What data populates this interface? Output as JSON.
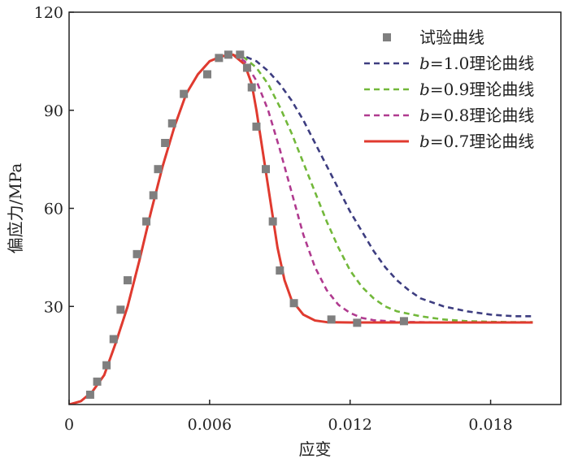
{
  "chart_data": {
    "type": "line",
    "xlabel": "应变",
    "ylabel": "偏应力/MPa",
    "xlim": [
      0,
      0.021
    ],
    "ylim": [
      0,
      120
    ],
    "x_ticks": [
      0,
      0.006,
      0.012,
      0.018
    ],
    "x_tick_labels": [
      "0",
      "0.006",
      "0.012",
      "0.018"
    ],
    "y_ticks": [
      30,
      60,
      90,
      120
    ],
    "y_tick_labels": [
      "30",
      "60",
      "90",
      "120"
    ],
    "grid": false,
    "legend_position": "top-right",
    "series": [
      {
        "name": "试验曲线",
        "kind": "scatter",
        "marker": "square",
        "color": "#7f7f7f",
        "points": [
          [
            0.0009,
            3
          ],
          [
            0.0012,
            7
          ],
          [
            0.0016,
            12
          ],
          [
            0.0019,
            20
          ],
          [
            0.0022,
            29
          ],
          [
            0.0025,
            38
          ],
          [
            0.0029,
            46
          ],
          [
            0.0033,
            56
          ],
          [
            0.0036,
            64
          ],
          [
            0.0038,
            72
          ],
          [
            0.0041,
            80
          ],
          [
            0.0044,
            86
          ],
          [
            0.0049,
            95
          ],
          [
            0.0059,
            101
          ],
          [
            0.0064,
            106
          ],
          [
            0.0068,
            107
          ],
          [
            0.0073,
            107
          ],
          [
            0.0076,
            103
          ],
          [
            0.0078,
            97
          ],
          [
            0.008,
            85
          ],
          [
            0.0084,
            72
          ],
          [
            0.0087,
            56
          ],
          [
            0.009,
            41
          ],
          [
            0.0096,
            31
          ],
          [
            0.0112,
            26
          ],
          [
            0.0123,
            25
          ],
          [
            0.0143,
            25.5
          ]
        ]
      },
      {
        "name": "b=1.0理论曲线",
        "kind": "line",
        "dash": true,
        "color": "#3d3d80",
        "points": [
          [
            0,
            0
          ],
          [
            0.0005,
            1
          ],
          [
            0.001,
            4
          ],
          [
            0.0015,
            9
          ],
          [
            0.002,
            19
          ],
          [
            0.0025,
            30
          ],
          [
            0.003,
            44
          ],
          [
            0.0035,
            59
          ],
          [
            0.004,
            73
          ],
          [
            0.0045,
            85
          ],
          [
            0.005,
            95
          ],
          [
            0.0055,
            101
          ],
          [
            0.006,
            105
          ],
          [
            0.0065,
            106.5
          ],
          [
            0.007,
            107
          ],
          [
            0.0075,
            106.5
          ],
          [
            0.008,
            105
          ],
          [
            0.0085,
            102
          ],
          [
            0.009,
            98
          ],
          [
            0.0095,
            93
          ],
          [
            0.01,
            87
          ],
          [
            0.0105,
            80
          ],
          [
            0.011,
            73
          ],
          [
            0.0115,
            66
          ],
          [
            0.012,
            59
          ],
          [
            0.0125,
            53
          ],
          [
            0.013,
            47
          ],
          [
            0.0135,
            42
          ],
          [
            0.014,
            38
          ],
          [
            0.0145,
            35
          ],
          [
            0.015,
            32.5
          ],
          [
            0.016,
            30
          ],
          [
            0.017,
            28.5
          ],
          [
            0.018,
            27.5
          ],
          [
            0.019,
            27
          ],
          [
            0.0198,
            27
          ]
        ]
      },
      {
        "name": "b=0.9理论曲线",
        "kind": "line",
        "dash": true,
        "color": "#72b83a",
        "points": [
          [
            0.007,
            107
          ],
          [
            0.0075,
            106
          ],
          [
            0.008,
            103
          ],
          [
            0.0085,
            98
          ],
          [
            0.009,
            91
          ],
          [
            0.0095,
            83
          ],
          [
            0.01,
            74
          ],
          [
            0.0105,
            65
          ],
          [
            0.011,
            56
          ],
          [
            0.0115,
            48
          ],
          [
            0.012,
            41
          ],
          [
            0.0125,
            36
          ],
          [
            0.013,
            32.5
          ],
          [
            0.0135,
            30
          ],
          [
            0.014,
            28.5
          ],
          [
            0.015,
            27
          ],
          [
            0.016,
            26
          ],
          [
            0.017,
            25.5
          ],
          [
            0.018,
            25.3
          ],
          [
            0.019,
            25.2
          ],
          [
            0.0198,
            25.2
          ]
        ]
      },
      {
        "name": "b=0.8理论曲线",
        "kind": "line",
        "dash": true,
        "color": "#b03a8f",
        "points": [
          [
            0.007,
            107
          ],
          [
            0.0075,
            105
          ],
          [
            0.008,
            99
          ],
          [
            0.0085,
            90
          ],
          [
            0.009,
            78
          ],
          [
            0.0095,
            65
          ],
          [
            0.01,
            52
          ],
          [
            0.0105,
            42
          ],
          [
            0.011,
            35
          ],
          [
            0.0115,
            30.5
          ],
          [
            0.012,
            28
          ],
          [
            0.0125,
            26.5
          ],
          [
            0.013,
            25.8
          ],
          [
            0.014,
            25.3
          ],
          [
            0.015,
            25.2
          ],
          [
            0.016,
            25.1
          ],
          [
            0.017,
            25.1
          ],
          [
            0.018,
            25.1
          ],
          [
            0.019,
            25.1
          ],
          [
            0.0198,
            25.1
          ]
        ]
      },
      {
        "name": "b=0.7理论曲线",
        "kind": "line",
        "dash": false,
        "color": "#e03a2f",
        "points": [
          [
            0,
            0
          ],
          [
            0.0005,
            1
          ],
          [
            0.001,
            4
          ],
          [
            0.0015,
            9
          ],
          [
            0.002,
            19
          ],
          [
            0.0025,
            30
          ],
          [
            0.003,
            44
          ],
          [
            0.0035,
            59
          ],
          [
            0.004,
            73
          ],
          [
            0.0045,
            85
          ],
          [
            0.005,
            95
          ],
          [
            0.0055,
            101
          ],
          [
            0.006,
            105
          ],
          [
            0.0065,
            106.5
          ],
          [
            0.007,
            107
          ],
          [
            0.0075,
            104
          ],
          [
            0.0078,
            98
          ],
          [
            0.008,
            90
          ],
          [
            0.0083,
            76
          ],
          [
            0.0086,
            62
          ],
          [
            0.0089,
            48
          ],
          [
            0.0092,
            38
          ],
          [
            0.0095,
            32
          ],
          [
            0.01,
            27.5
          ],
          [
            0.0105,
            25.7
          ],
          [
            0.011,
            25.2
          ],
          [
            0.012,
            25.1
          ],
          [
            0.014,
            25.1
          ],
          [
            0.016,
            25.1
          ],
          [
            0.018,
            25.1
          ],
          [
            0.0198,
            25.1
          ]
        ]
      }
    ]
  }
}
